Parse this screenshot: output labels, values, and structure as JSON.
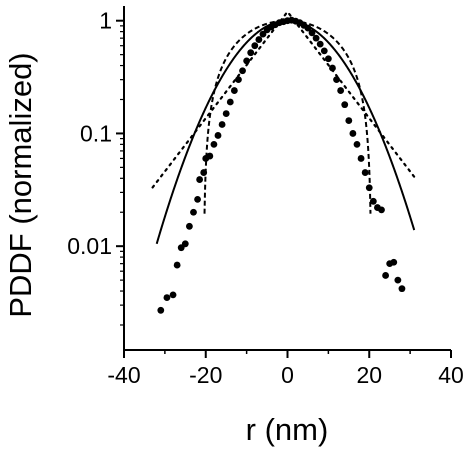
{
  "chart_data": {
    "type": "scatter",
    "xlabel": "r (nm)",
    "ylabel": "PDDF (normalized)",
    "xlim": [
      -40,
      40
    ],
    "ylim": [
      0.0012,
      1.35
    ],
    "y_scale": "log",
    "grid": false,
    "legend": "none",
    "x_ticks": [
      -40,
      -20,
      0,
      20,
      40
    ],
    "x_tick_labels": [
      "-40",
      "-20",
      "0",
      "20",
      "40"
    ],
    "y_ticks": [
      0.01,
      0.1,
      1
    ],
    "y_tick_labels": [
      "0.01",
      "0.1",
      "1"
    ],
    "series": [
      {
        "style": "points",
        "points": [
          [
            -31,
            0.0027
          ],
          [
            -29.5,
            0.0035
          ],
          [
            -28,
            0.0037
          ],
          [
            -27,
            0.0068
          ],
          [
            -26,
            0.0097
          ],
          [
            -25,
            0.0105
          ],
          [
            -24,
            0.015
          ],
          [
            -23,
            0.02
          ],
          [
            -22,
            0.026
          ],
          [
            -21.5,
            0.039
          ],
          [
            -20.5,
            0.045
          ],
          [
            -20,
            0.06
          ],
          [
            -19,
            0.063
          ],
          [
            -18,
            0.08
          ],
          [
            -17,
            0.096
          ],
          [
            -16,
            0.12
          ],
          [
            -15,
            0.15
          ],
          [
            -14,
            0.19
          ],
          [
            -13,
            0.24
          ],
          [
            -12,
            0.3
          ],
          [
            -11,
            0.36
          ],
          [
            -10,
            0.44
          ],
          [
            -9,
            0.52
          ],
          [
            -8,
            0.6
          ],
          [
            -7,
            0.68
          ],
          [
            -6,
            0.76
          ],
          [
            -5,
            0.83
          ],
          [
            -4,
            0.88
          ],
          [
            -3,
            0.92
          ],
          [
            -2,
            0.96
          ],
          [
            -1,
            0.98
          ],
          [
            0,
            1.0
          ],
          [
            1,
            1.01
          ],
          [
            2,
            0.99
          ],
          [
            3,
            0.96
          ],
          [
            4,
            0.91
          ],
          [
            5,
            0.86
          ],
          [
            6,
            0.78
          ],
          [
            7,
            0.7
          ],
          [
            8,
            0.62
          ],
          [
            9,
            0.54
          ],
          [
            10,
            0.46
          ],
          [
            11,
            0.38
          ],
          [
            12,
            0.3
          ],
          [
            13,
            0.24
          ],
          [
            14,
            0.18
          ],
          [
            15,
            0.13
          ],
          [
            16,
            0.1
          ],
          [
            17,
            0.08
          ],
          [
            18,
            0.06
          ],
          [
            19,
            0.045
          ],
          [
            20,
            0.033
          ],
          [
            21,
            0.025
          ],
          [
            22,
            0.022
          ],
          [
            23,
            0.021
          ],
          [
            24,
            0.0055
          ],
          [
            25,
            0.007
          ],
          [
            26,
            0.0072
          ],
          [
            27,
            0.005
          ],
          [
            28,
            0.0042
          ]
        ]
      },
      {
        "style": "solid",
        "curve": "gaussian",
        "sigma": 10.6,
        "x_range": [
          -32,
          31
        ]
      },
      {
        "style": "dashed",
        "curve": "parabolic",
        "half_width": 20.5,
        "x_range": [
          -20.3,
          20.3
        ]
      },
      {
        "style": "dotted",
        "curve": "exponential",
        "decay": 9.2,
        "peak": 1.2,
        "x_range": [
          -33,
          31
        ]
      }
    ]
  }
}
